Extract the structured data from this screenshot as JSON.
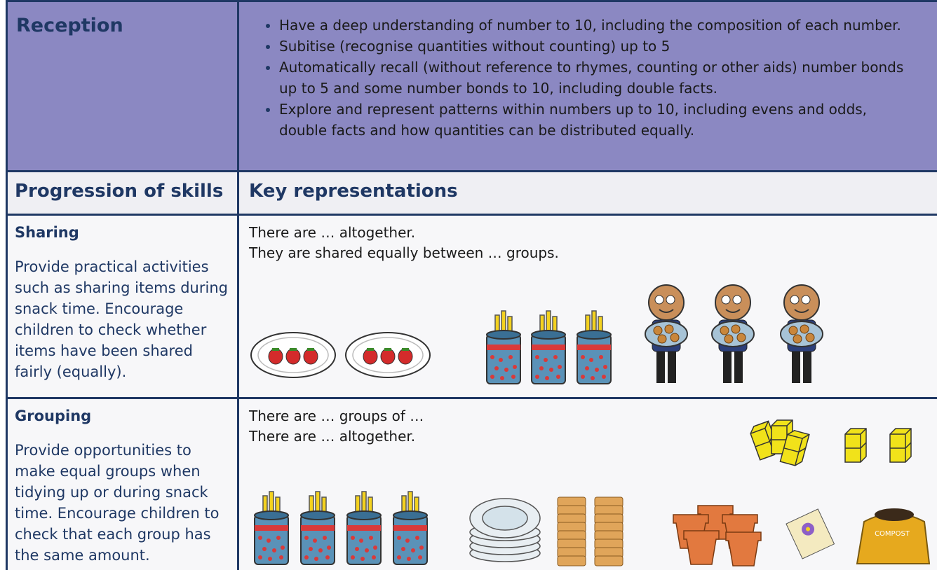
{
  "header": {
    "title": "Reception",
    "bullets": [
      "Have a deep understanding of number to 10, including the composition of each number.",
      "Subitise (recognise quantities without counting) up to 5",
      "Automatically recall (without reference to rhymes, counting or other aids) number bonds up to 5 and some number bonds to 10, including double facts.",
      "Explore and represent patterns within numbers up to 10, including evens and odds, double facts and how quantities can be distributed equally."
    ]
  },
  "table": {
    "headers": [
      "Progression of skills",
      "Key representations"
    ],
    "rows": [
      {
        "skill": "Sharing",
        "description": "Provide practical activities such as sharing items during snack time.  Encourage children to check whether items have been shared fairly (equally).",
        "prompts": [
          "There are … altogether.",
          "They are shared equally between … groups."
        ]
      },
      {
        "skill": "Grouping",
        "description": "Provide opportunities to make equal groups when tidying up or during snack time. Encourage children to check that each group has the same amount.",
        "prompts": [
          "There are … groups of …",
          "There are … altogether."
        ]
      }
    ]
  },
  "labels": {
    "compost": "COMPOST"
  }
}
